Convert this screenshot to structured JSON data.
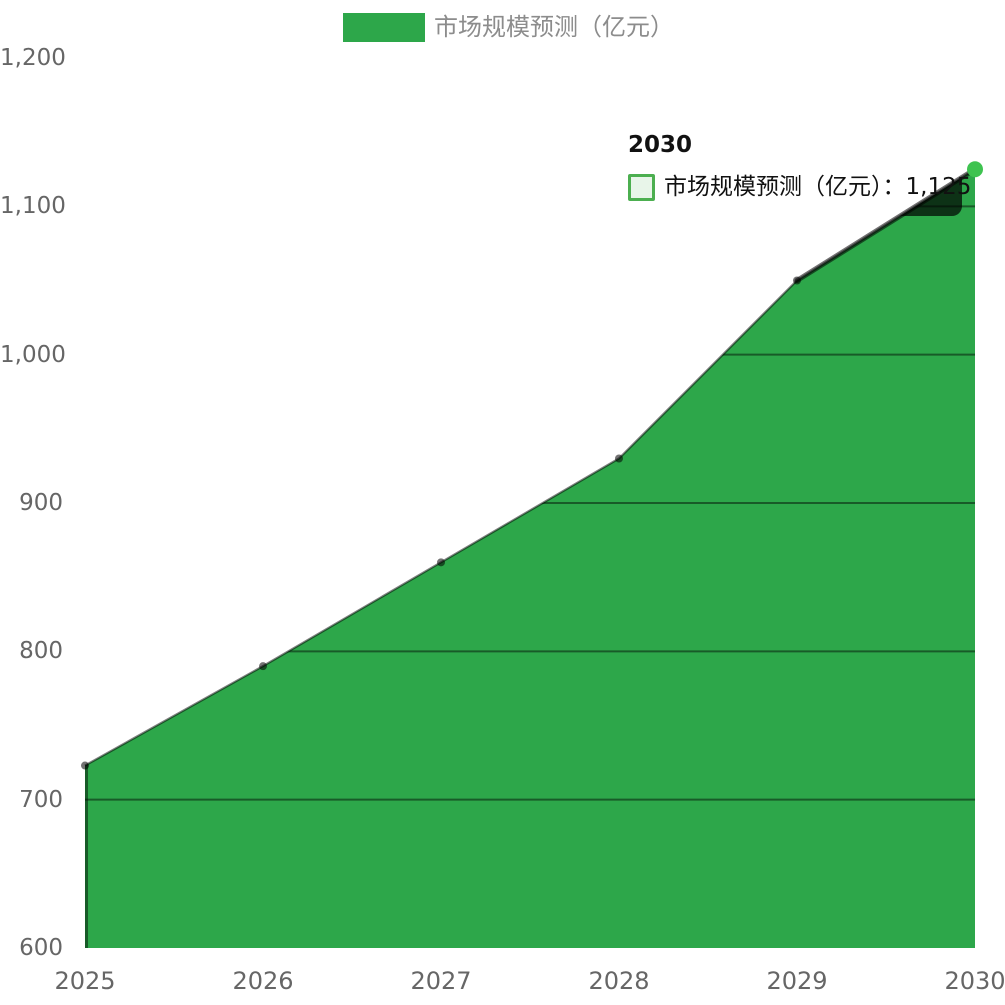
{
  "chart_data": {
    "type": "area",
    "title": "",
    "categories": [
      "2025",
      "2026",
      "2027",
      "2028",
      "2029",
      "2030"
    ],
    "series": [
      {
        "name": "市场规模预测（亿元）",
        "values": [
          723,
          790,
          860,
          930,
          1050,
          1125
        ]
      }
    ],
    "ylim": [
      600,
      1200
    ],
    "yticks": [
      {
        "value": 1200,
        "label": "1,200"
      },
      {
        "value": 1100,
        "label": "1,100"
      },
      {
        "value": 1000,
        "label": "1,000"
      },
      {
        "value": 900,
        "label": "900"
      },
      {
        "value": 800,
        "label": "800"
      },
      {
        "value": 700,
        "label": "700"
      },
      {
        "value": 600,
        "label": "600"
      }
    ],
    "grid": "horizontal lines, visible only across the filled area",
    "legend_position": "top-center",
    "xlabel": "",
    "ylabel": ""
  },
  "legend": {
    "label": "市场规模预测（亿元）"
  },
  "tooltip": {
    "title": "2030",
    "label": "市场规模预测（亿元）",
    "separator": "：",
    "value": "1,125"
  },
  "colors": {
    "area_fill": "#2DA74A",
    "legend_swatch": "#2DA74A",
    "active_point": "#3EC350",
    "series_line": "rgba(0,0,0,0.50)",
    "hover_line": "rgba(0,0,0,0.55)",
    "point_dot": "rgba(0,0,0,0.55)",
    "gridline": "rgba(0,0,0,0.45)",
    "tooltip_shadow": "rgba(0,0,0,0.70)",
    "axis_label": "#666666",
    "legend_label": "#8C8C8C",
    "tooltip_text": "#111111",
    "tooltip_swatch_border": "#4CAF50",
    "tooltip_swatch_fill": "#E8F5E9",
    "background": "#FFFFFF"
  },
  "icons": {
    "legend_swatch": "legend-color-box",
    "tooltip_swatch": "tooltip-color-box"
  }
}
